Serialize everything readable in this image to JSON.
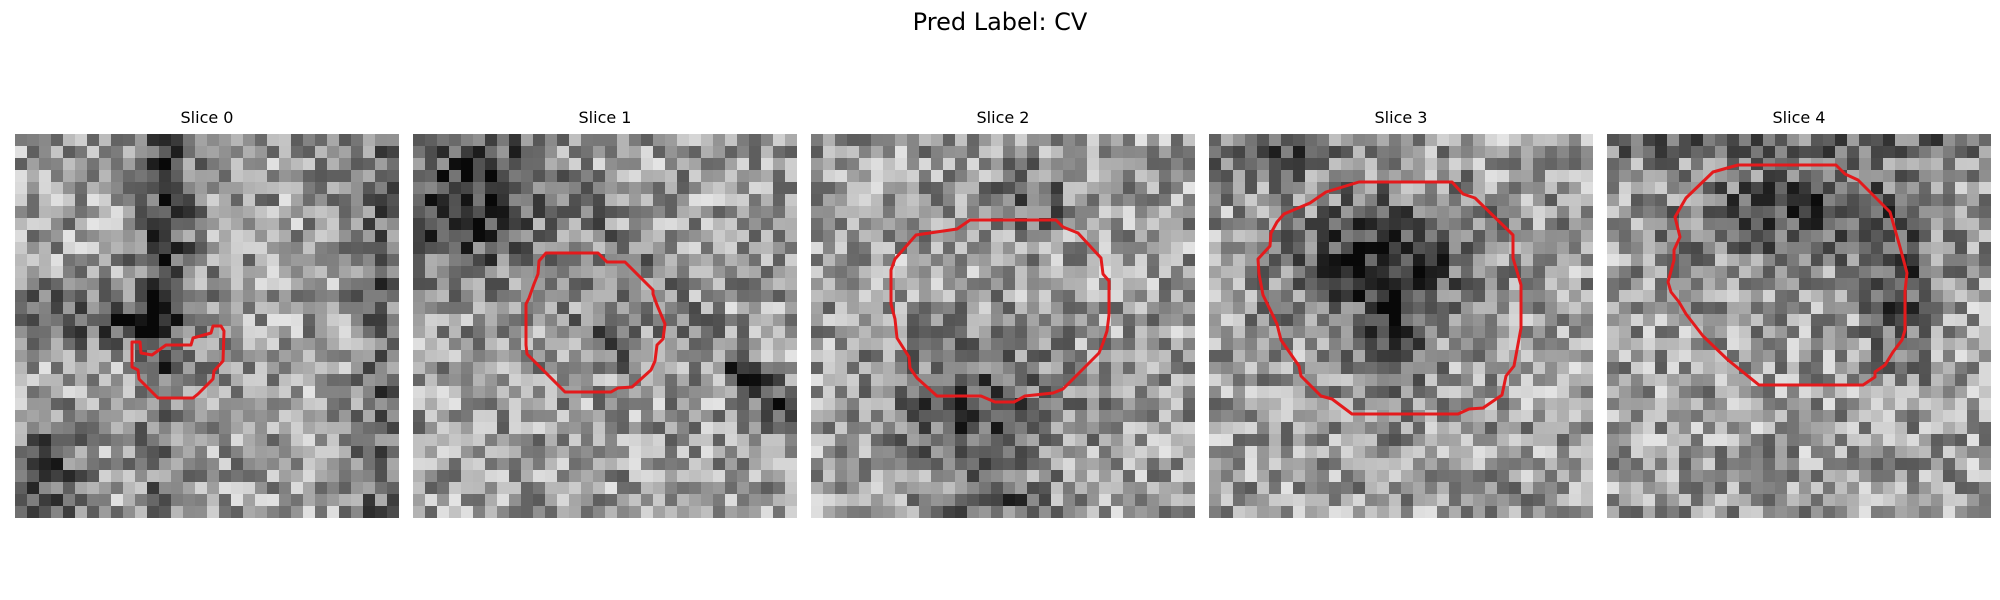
{
  "figure": {
    "title": "Pred Label: CV"
  },
  "colors": {
    "contour": "#e41a1c",
    "background": "#ffffff"
  },
  "panels": [
    {
      "title": "Slice 0",
      "seed": 11,
      "dark_regions": "left-band"
    },
    {
      "title": "Slice 1",
      "seed": 23,
      "dark_regions": "upper-left"
    },
    {
      "title": "Slice 2",
      "seed": 37,
      "dark_regions": "lower-center"
    },
    {
      "title": "Slice 3",
      "seed": 51,
      "dark_regions": "upper-center"
    },
    {
      "title": "Slice 4",
      "seed": 67,
      "dark_regions": "top-ring"
    }
  ]
}
